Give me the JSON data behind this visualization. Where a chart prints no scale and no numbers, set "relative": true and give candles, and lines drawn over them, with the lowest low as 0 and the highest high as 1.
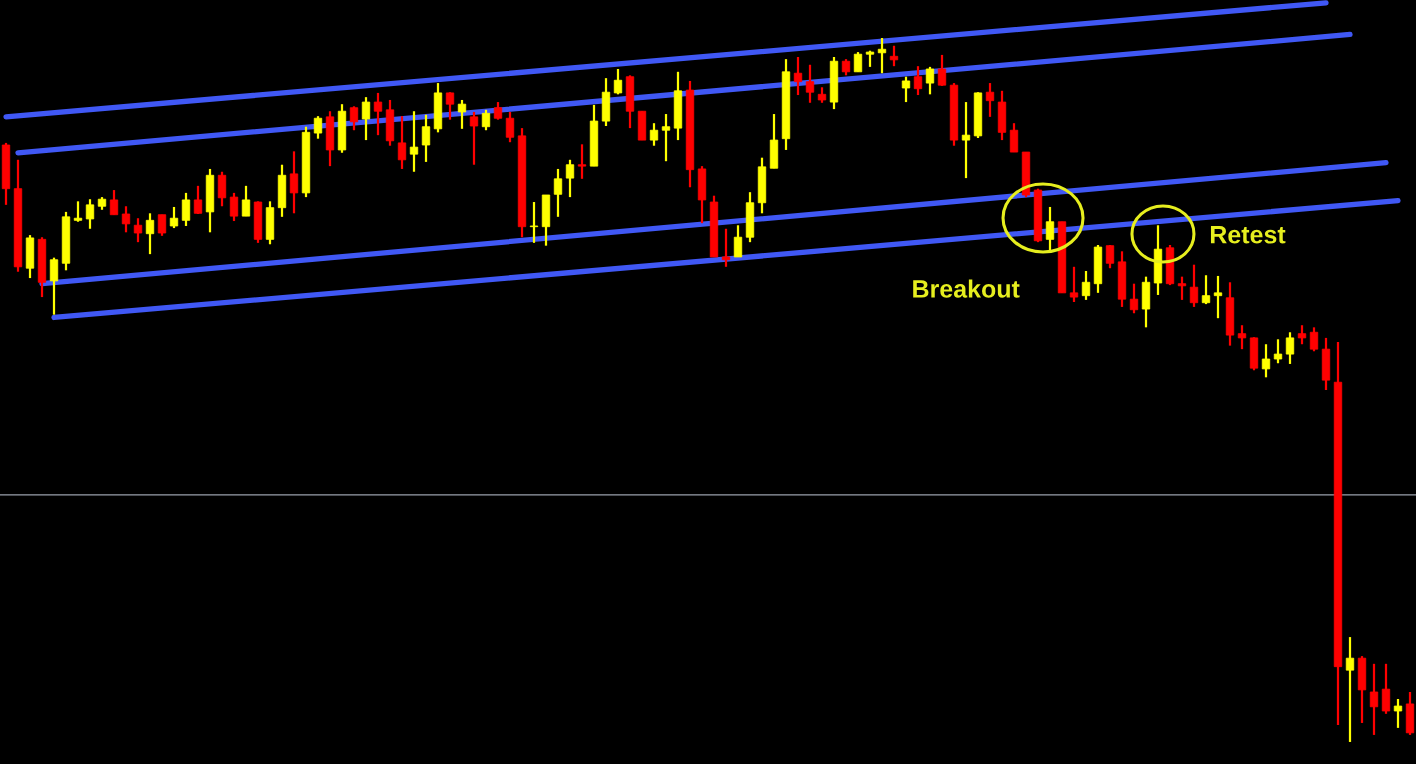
{
  "chart_data": {
    "type": "candlestick",
    "relative": true,
    "categories": [
      null,
      null,
      null,
      null,
      null,
      null,
      null,
      null,
      null,
      null,
      null,
      null,
      null,
      null,
      null,
      null,
      null,
      null,
      null,
      null,
      null,
      null,
      null,
      null,
      null,
      null,
      null,
      null,
      null,
      null,
      null,
      null,
      null,
      null,
      null,
      null,
      null,
      null,
      null,
      null,
      null,
      null,
      null,
      null,
      null,
      null,
      null,
      null,
      null,
      null,
      null,
      null,
      null,
      null,
      null,
      null,
      null,
      null,
      null,
      null,
      null,
      null,
      null,
      null,
      null,
      null,
      null,
      null,
      null,
      null,
      null,
      null,
      null,
      null,
      null,
      null,
      null,
      null,
      null,
      null,
      null,
      null,
      null,
      null,
      null,
      null,
      null,
      null,
      null,
      null,
      null,
      null,
      null,
      null,
      null,
      null,
      null,
      null,
      null,
      null,
      null,
      null,
      null,
      null,
      null,
      null,
      null,
      null,
      null,
      null,
      null,
      null,
      null,
      null,
      null,
      null,
      null,
      null
    ],
    "ohlc": [
      [
        0.848,
        0.851,
        0.763,
        0.786
      ],
      [
        0.786,
        0.827,
        0.668,
        0.675
      ],
      [
        0.673,
        0.72,
        0.659,
        0.716
      ],
      [
        0.714,
        0.717,
        0.632,
        0.653
      ],
      [
        0.655,
        0.688,
        0.607,
        0.685
      ],
      [
        0.68,
        0.753,
        0.67,
        0.746
      ],
      [
        0.741,
        0.768,
        0.739,
        0.744
      ],
      [
        0.743,
        0.771,
        0.729,
        0.763
      ],
      [
        0.761,
        0.774,
        0.756,
        0.771
      ],
      [
        0.77,
        0.784,
        0.749,
        0.749
      ],
      [
        0.75,
        0.761,
        0.724,
        0.736
      ],
      [
        0.734,
        0.744,
        0.71,
        0.723
      ],
      [
        0.722,
        0.751,
        0.693,
        0.741
      ],
      [
        0.749,
        0.749,
        0.719,
        0.723
      ],
      [
        0.733,
        0.76,
        0.73,
        0.744
      ],
      [
        0.741,
        0.78,
        0.733,
        0.77
      ],
      [
        0.77,
        0.79,
        0.75,
        0.751
      ],
      [
        0.753,
        0.814,
        0.724,
        0.805
      ],
      [
        0.805,
        0.81,
        0.761,
        0.773
      ],
      [
        0.774,
        0.78,
        0.74,
        0.747
      ],
      [
        0.747,
        0.79,
        0.747,
        0.77
      ],
      [
        0.767,
        0.768,
        0.709,
        0.714
      ],
      [
        0.714,
        0.768,
        0.707,
        0.759
      ],
      [
        0.759,
        0.82,
        0.746,
        0.805
      ],
      [
        0.807,
        0.839,
        0.751,
        0.78
      ],
      [
        0.78,
        0.874,
        0.774,
        0.866
      ],
      [
        0.865,
        0.889,
        0.857,
        0.886
      ],
      [
        0.888,
        0.896,
        0.818,
        0.841
      ],
      [
        0.841,
        0.906,
        0.837,
        0.896
      ],
      [
        0.901,
        0.903,
        0.869,
        0.881
      ],
      [
        0.885,
        0.916,
        0.855,
        0.909
      ],
      [
        0.909,
        0.922,
        0.862,
        0.896
      ],
      [
        0.898,
        0.912,
        0.847,
        0.854
      ],
      [
        0.851,
        0.889,
        0.814,
        0.827
      ],
      [
        0.835,
        0.896,
        0.81,
        0.845
      ],
      [
        0.848,
        0.891,
        0.824,
        0.874
      ],
      [
        0.871,
        0.936,
        0.866,
        0.922
      ],
      [
        0.922,
        0.923,
        0.884,
        0.906
      ],
      [
        0.895,
        0.912,
        0.871,
        0.906
      ],
      [
        0.888,
        0.895,
        0.82,
        0.875
      ],
      [
        0.874,
        0.898,
        0.869,
        0.893
      ],
      [
        0.901,
        0.909,
        0.884,
        0.886
      ],
      [
        0.886,
        0.895,
        0.852,
        0.859
      ],
      [
        0.861,
        0.872,
        0.717,
        0.732
      ],
      [
        0.732,
        0.767,
        0.709,
        0.733
      ],
      [
        0.732,
        0.777,
        0.705,
        0.777
      ],
      [
        0.778,
        0.814,
        0.746,
        0.8
      ],
      [
        0.801,
        0.827,
        0.774,
        0.82
      ],
      [
        0.82,
        0.849,
        0.8,
        0.818
      ],
      [
        0.818,
        0.905,
        0.818,
        0.882
      ],
      [
        0.882,
        0.943,
        0.875,
        0.923
      ],
      [
        0.922,
        0.956,
        0.92,
        0.94
      ],
      [
        0.945,
        0.947,
        0.872,
        0.896
      ],
      [
        0.896,
        0.896,
        0.855,
        0.855
      ],
      [
        0.855,
        0.879,
        0.847,
        0.869
      ],
      [
        0.869,
        0.892,
        0.825,
        0.874
      ],
      [
        0.872,
        0.952,
        0.855,
        0.925
      ],
      [
        0.926,
        0.939,
        0.788,
        0.813
      ],
      [
        0.814,
        0.818,
        0.737,
        0.77
      ],
      [
        0.767,
        0.776,
        0.689,
        0.689
      ],
      [
        0.689,
        0.729,
        0.675,
        0.685
      ],
      [
        0.689,
        0.734,
        0.689,
        0.717
      ],
      [
        0.717,
        0.781,
        0.71,
        0.766
      ],
      [
        0.766,
        0.83,
        0.751,
        0.817
      ],
      [
        0.815,
        0.892,
        0.815,
        0.855
      ],
      [
        0.857,
        0.97,
        0.841,
        0.952
      ],
      [
        0.95,
        0.973,
        0.919,
        0.938
      ],
      [
        0.938,
        0.962,
        0.908,
        0.923
      ],
      [
        0.92,
        0.93,
        0.908,
        0.912
      ],
      [
        0.909,
        0.973,
        0.899,
        0.967
      ],
      [
        0.967,
        0.97,
        0.947,
        0.952
      ],
      [
        0.952,
        0.98,
        0.952,
        0.977
      ],
      [
        0.977,
        0.982,
        0.959,
        0.98
      ],
      [
        0.979,
        1.0,
        0.95,
        0.984
      ],
      [
        0.974,
        0.989,
        0.96,
        0.969
      ],
      [
        0.929,
        0.945,
        0.909,
        0.939
      ],
      [
        0.945,
        0.96,
        0.919,
        0.928
      ],
      [
        0.936,
        0.959,
        0.92,
        0.956
      ],
      [
        0.956,
        0.976,
        0.932,
        0.933
      ],
      [
        0.933,
        0.936,
        0.847,
        0.855
      ],
      [
        0.855,
        0.909,
        0.801,
        0.862
      ],
      [
        0.861,
        0.923,
        0.858,
        0.922
      ],
      [
        0.923,
        0.936,
        0.888,
        0.911
      ],
      [
        0.909,
        0.925,
        0.855,
        0.866
      ],
      [
        0.869,
        0.879,
        0.838,
        0.838
      ],
      [
        0.838,
        0.838,
        0.774,
        0.777
      ],
      [
        0.784,
        0.786,
        0.71,
        0.712
      ],
      [
        0.714,
        0.76,
        0.695,
        0.739
      ],
      [
        0.739,
        0.739,
        0.638,
        0.638
      ],
      [
        0.638,
        0.675,
        0.625,
        0.632
      ],
      [
        0.634,
        0.669,
        0.628,
        0.653
      ],
      [
        0.651,
        0.706,
        0.638,
        0.703
      ],
      [
        0.705,
        0.706,
        0.673,
        0.68
      ],
      [
        0.682,
        0.697,
        0.618,
        0.629
      ],
      [
        0.629,
        0.651,
        0.609,
        0.614
      ],
      [
        0.615,
        0.661,
        0.589,
        0.653
      ],
      [
        0.652,
        0.734,
        0.635,
        0.7
      ],
      [
        0.702,
        0.706,
        0.649,
        0.651
      ],
      [
        0.651,
        0.661,
        0.628,
        0.648
      ],
      [
        0.646,
        0.678,
        0.618,
        0.624
      ],
      [
        0.624,
        0.663,
        0.622,
        0.634
      ],
      [
        0.634,
        0.662,
        0.602,
        0.638
      ],
      [
        0.631,
        0.653,
        0.563,
        0.578
      ],
      [
        0.58,
        0.592,
        0.558,
        0.574
      ],
      [
        0.574,
        0.575,
        0.528,
        0.531
      ],
      [
        0.53,
        0.565,
        0.518,
        0.544
      ],
      [
        0.544,
        0.572,
        0.538,
        0.551
      ],
      [
        0.551,
        0.582,
        0.537,
        0.574
      ],
      [
        0.58,
        0.592,
        0.565,
        0.574
      ],
      [
        0.582,
        0.589,
        0.555,
        0.558
      ],
      [
        0.558,
        0.574,
        0.5,
        0.514
      ],
      [
        0.511,
        0.568,
        0.024,
        0.107
      ],
      [
        0.102,
        0.149,
        0.0,
        0.119
      ],
      [
        0.119,
        0.122,
        0.027,
        0.074
      ],
      [
        0.071,
        0.111,
        0.01,
        0.05
      ],
      [
        0.075,
        0.111,
        0.04,
        0.044
      ],
      [
        0.044,
        0.061,
        0.02,
        0.051
      ],
      [
        0.054,
        0.071,
        0.01,
        0.013
      ]
    ],
    "colors": [
      "#ff0000",
      "#ff0000",
      "#ffff00",
      "#ff0000",
      "#ffff00",
      "#ffff00",
      "#ffff00",
      "#ffff00",
      "#ffff00",
      "#ff0000",
      "#ff0000",
      "#ff0000",
      "#ffff00",
      "#ff0000",
      "#ffff00",
      "#ffff00",
      "#ff0000",
      "#ffff00",
      "#ff0000",
      "#ff0000",
      "#ffff00",
      "#ff0000",
      "#ffff00",
      "#ffff00",
      "#ff0000",
      "#ffff00",
      "#ffff00",
      "#ff0000",
      "#ffff00",
      "#ff0000",
      "#ffff00",
      "#ff0000",
      "#ff0000",
      "#ff0000",
      "#ffff00",
      "#ffff00",
      "#ffff00",
      "#ff0000",
      "#ffff00",
      "#ff0000",
      "#ffff00",
      "#ff0000",
      "#ff0000",
      "#ff0000",
      "#ffff00",
      "#ffff00",
      "#ffff00",
      "#ffff00",
      "#ff0000",
      "#ffff00",
      "#ffff00",
      "#ffff00",
      "#ff0000",
      "#ff0000",
      "#ffff00",
      "#ffff00",
      "#ffff00",
      "#ff0000",
      "#ff0000",
      "#ff0000",
      "#ff0000",
      "#ffff00",
      "#ffff00",
      "#ffff00",
      "#ffff00",
      "#ffff00",
      "#ff0000",
      "#ff0000",
      "#ff0000",
      "#ffff00",
      "#ff0000",
      "#ffff00",
      "#ffff00",
      "#ffff00",
      "#ff0000",
      "#ffff00",
      "#ff0000",
      "#ffff00",
      "#ff0000",
      "#ff0000",
      "#ffff00",
      "#ffff00",
      "#ff0000",
      "#ff0000",
      "#ff0000",
      "#ff0000",
      "#ff0000",
      "#ffff00",
      "#ff0000",
      "#ff0000",
      "#ffff00",
      "#ffff00",
      "#ff0000",
      "#ff0000",
      "#ff0000",
      "#ffff00",
      "#ffff00",
      "#ff0000",
      "#ff0000",
      "#ff0000",
      "#ffff00",
      "#ffff00",
      "#ff0000",
      "#ff0000",
      "#ff0000",
      "#ffff00",
      "#ffff00",
      "#ffff00",
      "#ff0000",
      "#ff0000",
      "#ff0000",
      "#ff0000",
      "#ffff00",
      "#ff0000",
      "#ff0000",
      "#ff0000",
      "#ffff00",
      "#ff0000"
    ],
    "series": [
      {
        "type": "line",
        "color": "#4058f5",
        "values": [
          0.888,
          null,
          null,
          null,
          null,
          null,
          null,
          null,
          null,
          null,
          null,
          null,
          null,
          null,
          null,
          null,
          null,
          null,
          null,
          null,
          null,
          null,
          null,
          null,
          null,
          null,
          null,
          null,
          null,
          null,
          null,
          null,
          null,
          null,
          null,
          null,
          null,
          null,
          null,
          null,
          null,
          null,
          null,
          null,
          null,
          null,
          null,
          null,
          null,
          null,
          null,
          null,
          null,
          null,
          null,
          null,
          null,
          null,
          null,
          null,
          null,
          null,
          null,
          null,
          null,
          null,
          null,
          null,
          null,
          null,
          null,
          null,
          null,
          null,
          null,
          null,
          null,
          null,
          null,
          null,
          null,
          null,
          null,
          null,
          null,
          null,
          null,
          null,
          null,
          null,
          null,
          null,
          null,
          null,
          null,
          null,
          null,
          null,
          null,
          null,
          null,
          null,
          null,
          null,
          null,
          null,
          null,
          null,
          null,
          null,
          1.05,
          null,
          null,
          null,
          null,
          null,
          null,
          null
        ]
      },
      {
        "type": "line",
        "color": "#4058f5",
        "values": [
          null,
          0.837,
          null,
          null,
          null,
          null,
          null,
          null,
          null,
          null,
          null,
          null,
          null,
          null,
          null,
          null,
          null,
          null,
          null,
          null,
          null,
          null,
          null,
          null,
          null,
          null,
          null,
          null,
          null,
          null,
          null,
          null,
          null,
          null,
          null,
          null,
          null,
          null,
          null,
          null,
          null,
          null,
          null,
          null,
          null,
          null,
          null,
          null,
          null,
          null,
          null,
          null,
          null,
          null,
          null,
          null,
          null,
          null,
          null,
          null,
          null,
          null,
          null,
          null,
          null,
          null,
          null,
          null,
          null,
          null,
          null,
          null,
          null,
          null,
          null,
          null,
          null,
          null,
          null,
          null,
          null,
          null,
          null,
          null,
          null,
          null,
          null,
          null,
          null,
          null,
          null,
          null,
          null,
          null,
          null,
          null,
          null,
          null,
          null,
          null,
          null,
          null,
          null,
          null,
          null,
          null,
          null,
          null,
          null,
          null,
          null,
          null,
          1.005,
          null,
          null,
          null,
          null,
          null
        ]
      },
      {
        "type": "line",
        "color": "#4058f5",
        "values": [
          null,
          null,
          null,
          0.651,
          null,
          null,
          null,
          null,
          null,
          null,
          null,
          null,
          null,
          null,
          null,
          null,
          null,
          null,
          null,
          null,
          null,
          null,
          null,
          null,
          null,
          null,
          null,
          null,
          null,
          null,
          null,
          null,
          null,
          null,
          null,
          null,
          null,
          null,
          null,
          null,
          null,
          null,
          null,
          null,
          null,
          null,
          null,
          null,
          null,
          null,
          null,
          null,
          null,
          null,
          null,
          null,
          null,
          null,
          null,
          null,
          null,
          null,
          null,
          null,
          null,
          null,
          null,
          null,
          null,
          null,
          null,
          null,
          null,
          null,
          null,
          null,
          null,
          null,
          null,
          null,
          null,
          null,
          null,
          null,
          null,
          null,
          null,
          null,
          null,
          null,
          null,
          null,
          null,
          null,
          null,
          null,
          null,
          null,
          null,
          null,
          null,
          null,
          null,
          null,
          null,
          null,
          null,
          null,
          null,
          null,
          null,
          null,
          null,
          null,
          null,
          0.823,
          null,
          null
        ]
      },
      {
        "type": "line",
        "color": "#4058f5",
        "values": [
          null,
          null,
          null,
          null,
          0.603,
          null,
          null,
          null,
          null,
          null,
          null,
          null,
          null,
          null,
          null,
          null,
          null,
          null,
          null,
          null,
          null,
          null,
          null,
          null,
          null,
          null,
          null,
          null,
          null,
          null,
          null,
          null,
          null,
          null,
          null,
          null,
          null,
          null,
          null,
          null,
          null,
          null,
          null,
          null,
          null,
          null,
          null,
          null,
          null,
          null,
          null,
          null,
          null,
          null,
          null,
          null,
          null,
          null,
          null,
          null,
          null,
          null,
          null,
          null,
          null,
          null,
          null,
          null,
          null,
          null,
          null,
          null,
          null,
          null,
          null,
          null,
          null,
          null,
          null,
          null,
          null,
          null,
          null,
          null,
          null,
          null,
          null,
          null,
          null,
          null,
          null,
          null,
          null,
          null,
          null,
          null,
          null,
          null,
          null,
          null,
          null,
          null,
          null,
          null,
          null,
          null,
          null,
          null,
          null,
          null,
          null,
          null,
          null,
          null,
          null,
          null,
          0.769,
          null
        ]
      }
    ],
    "ref_lines": [
      {
        "axis": "y",
        "value": 0.351,
        "color": "#9aa0ab"
      }
    ],
    "annotations": [
      "Breakout",
      "Retest"
    ]
  }
}
